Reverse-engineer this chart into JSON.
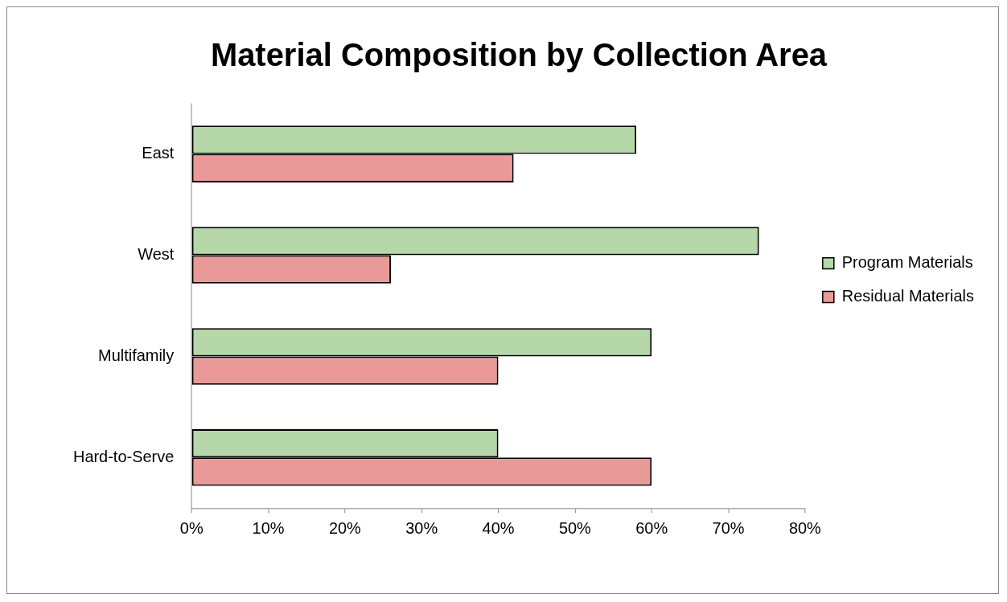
{
  "chart_data": {
    "type": "bar",
    "orientation": "horizontal",
    "title": "Material Composition by Collection Area",
    "categories": [
      "East",
      "West",
      "Multifamily",
      "Hard-to-Serve"
    ],
    "series": [
      {
        "name": "Program Materials",
        "color": "#b6d7a8",
        "values": [
          58,
          74,
          60,
          40
        ]
      },
      {
        "name": "Residual Materials",
        "color": "#ea9999",
        "values": [
          42,
          26,
          40,
          60
        ]
      }
    ],
    "xlim": [
      0,
      80
    ],
    "xticks": [
      {
        "value": 0,
        "label": "0%"
      },
      {
        "value": 10,
        "label": "10%"
      },
      {
        "value": 20,
        "label": "20%"
      },
      {
        "value": 30,
        "label": "30%"
      },
      {
        "value": 40,
        "label": "40%"
      },
      {
        "value": 50,
        "label": "50%"
      },
      {
        "value": 60,
        "label": "60%"
      },
      {
        "value": 70,
        "label": "70%"
      },
      {
        "value": 80,
        "label": "80%"
      }
    ],
    "grid": false,
    "legend": "right"
  }
}
